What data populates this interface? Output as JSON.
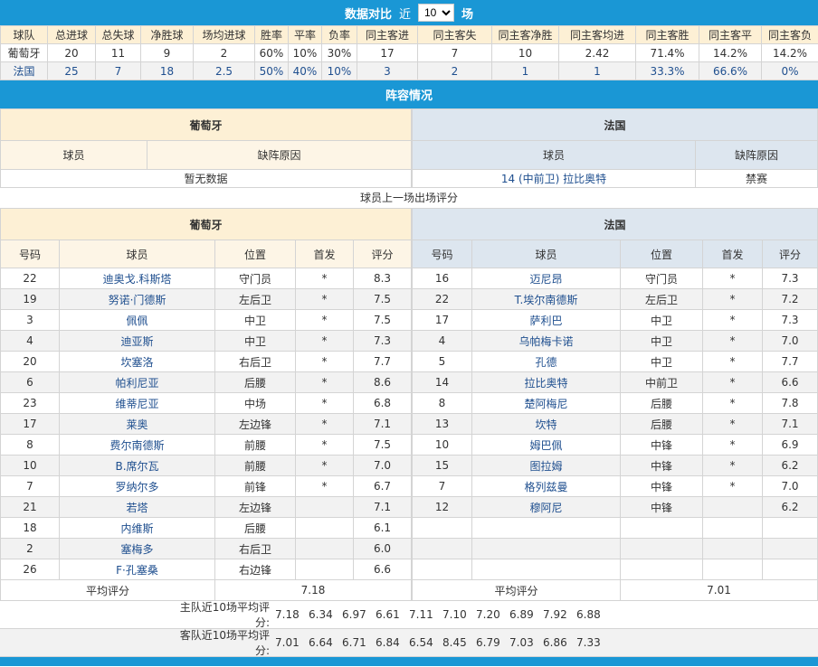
{
  "header": {
    "title": "数据对比",
    "near": "近",
    "count": "10",
    "unit": "场"
  },
  "stats": {
    "columns": [
      "球队",
      "总进球",
      "总失球",
      "净胜球",
      "场均进球",
      "胜率",
      "平率",
      "负率",
      "同主客进",
      "同主客失",
      "同主客净胜",
      "同主客均进",
      "同主客胜",
      "同主客平",
      "同主客负"
    ],
    "rows": [
      [
        "葡萄牙",
        "20",
        "11",
        "9",
        "2",
        "60%",
        "10%",
        "30%",
        "17",
        "7",
        "10",
        "2.42",
        "71.4%",
        "14.2%",
        "14.2%"
      ],
      [
        "法国",
        "25",
        "7",
        "18",
        "2.5",
        "50%",
        "40%",
        "10%",
        "3",
        "2",
        "1",
        "1",
        "33.3%",
        "66.6%",
        "0%"
      ]
    ]
  },
  "lineup_title": "阵容情况",
  "absent": {
    "home_team": "葡萄牙",
    "away_team": "法国",
    "col_player": "球员",
    "col_reason": "缺阵原因",
    "home_empty": "暂无数据",
    "away": [
      {
        "player": "14 (中前卫) 拉比奥特",
        "reason": "禁赛"
      }
    ]
  },
  "ratings_title": "球员上一场出场评分",
  "ratings": {
    "columns": [
      "号码",
      "球员",
      "位置",
      "首发",
      "评分"
    ],
    "home_team": "葡萄牙",
    "away_team": "法国",
    "home": [
      [
        "22",
        "迪奥戈.科斯塔",
        "守门员",
        "*",
        "8.3"
      ],
      [
        "19",
        "努诺·门德斯",
        "左后卫",
        "*",
        "7.5"
      ],
      [
        "3",
        "佩佩",
        "中卫",
        "*",
        "7.5"
      ],
      [
        "4",
        "迪亚斯",
        "中卫",
        "*",
        "7.3"
      ],
      [
        "20",
        "坎塞洛",
        "右后卫",
        "*",
        "7.7"
      ],
      [
        "6",
        "帕利尼亚",
        "后腰",
        "*",
        "8.6"
      ],
      [
        "23",
        "维蒂尼亚",
        "中场",
        "*",
        "6.8"
      ],
      [
        "17",
        "莱奥",
        "左边锋",
        "*",
        "7.1"
      ],
      [
        "8",
        "费尔南德斯",
        "前腰",
        "*",
        "7.5"
      ],
      [
        "10",
        "B.席尔瓦",
        "前腰",
        "*",
        "7.0"
      ],
      [
        "7",
        "罗纳尔多",
        "前锋",
        "*",
        "6.7"
      ],
      [
        "21",
        "若塔",
        "左边锋",
        "",
        "7.1"
      ],
      [
        "18",
        "内维斯",
        "后腰",
        "",
        "6.1"
      ],
      [
        "2",
        "塞梅多",
        "右后卫",
        "",
        "6.0"
      ],
      [
        "26",
        "F·孔塞桑",
        "右边锋",
        "",
        "6.6"
      ]
    ],
    "away": [
      [
        "16",
        "迈尼昂",
        "守门员",
        "*",
        "7.3"
      ],
      [
        "22",
        "T.埃尔南德斯",
        "左后卫",
        "*",
        "7.2"
      ],
      [
        "17",
        "萨利巴",
        "中卫",
        "*",
        "7.3"
      ],
      [
        "4",
        "乌帕梅卡诺",
        "中卫",
        "*",
        "7.0"
      ],
      [
        "5",
        "孔德",
        "中卫",
        "*",
        "7.7"
      ],
      [
        "14",
        "拉比奥特",
        "中前卫",
        "*",
        "6.6"
      ],
      [
        "8",
        "楚阿梅尼",
        "后腰",
        "*",
        "7.8"
      ],
      [
        "13",
        "坎特",
        "后腰",
        "*",
        "7.1"
      ],
      [
        "10",
        "姆巴佩",
        "中锋",
        "*",
        "6.9"
      ],
      [
        "15",
        "图拉姆",
        "中锋",
        "*",
        "6.2"
      ],
      [
        "7",
        "格列兹曼",
        "中锋",
        "*",
        "7.0"
      ],
      [
        "12",
        "穆阿尼",
        "中锋",
        "",
        "6.2"
      ]
    ],
    "avg_label": "平均评分",
    "home_avg": "7.18",
    "away_avg": "7.01"
  },
  "recent": {
    "home_label": "主队近10场平均评分:",
    "home": [
      "7.18",
      "6.34",
      "6.97",
      "6.61",
      "7.11",
      "7.10",
      "7.20",
      "6.89",
      "7.92",
      "6.88"
    ],
    "away_label": "客队近10场平均评分:",
    "away": [
      "7.01",
      "6.64",
      "6.71",
      "6.84",
      "6.54",
      "8.45",
      "6.79",
      "7.03",
      "6.86",
      "7.33"
    ]
  },
  "colors": {
    "bar": "#1a97d5",
    "home_bg": "#fdf0d5",
    "away_bg": "#dde6ef",
    "link": "#1f4f8f"
  }
}
